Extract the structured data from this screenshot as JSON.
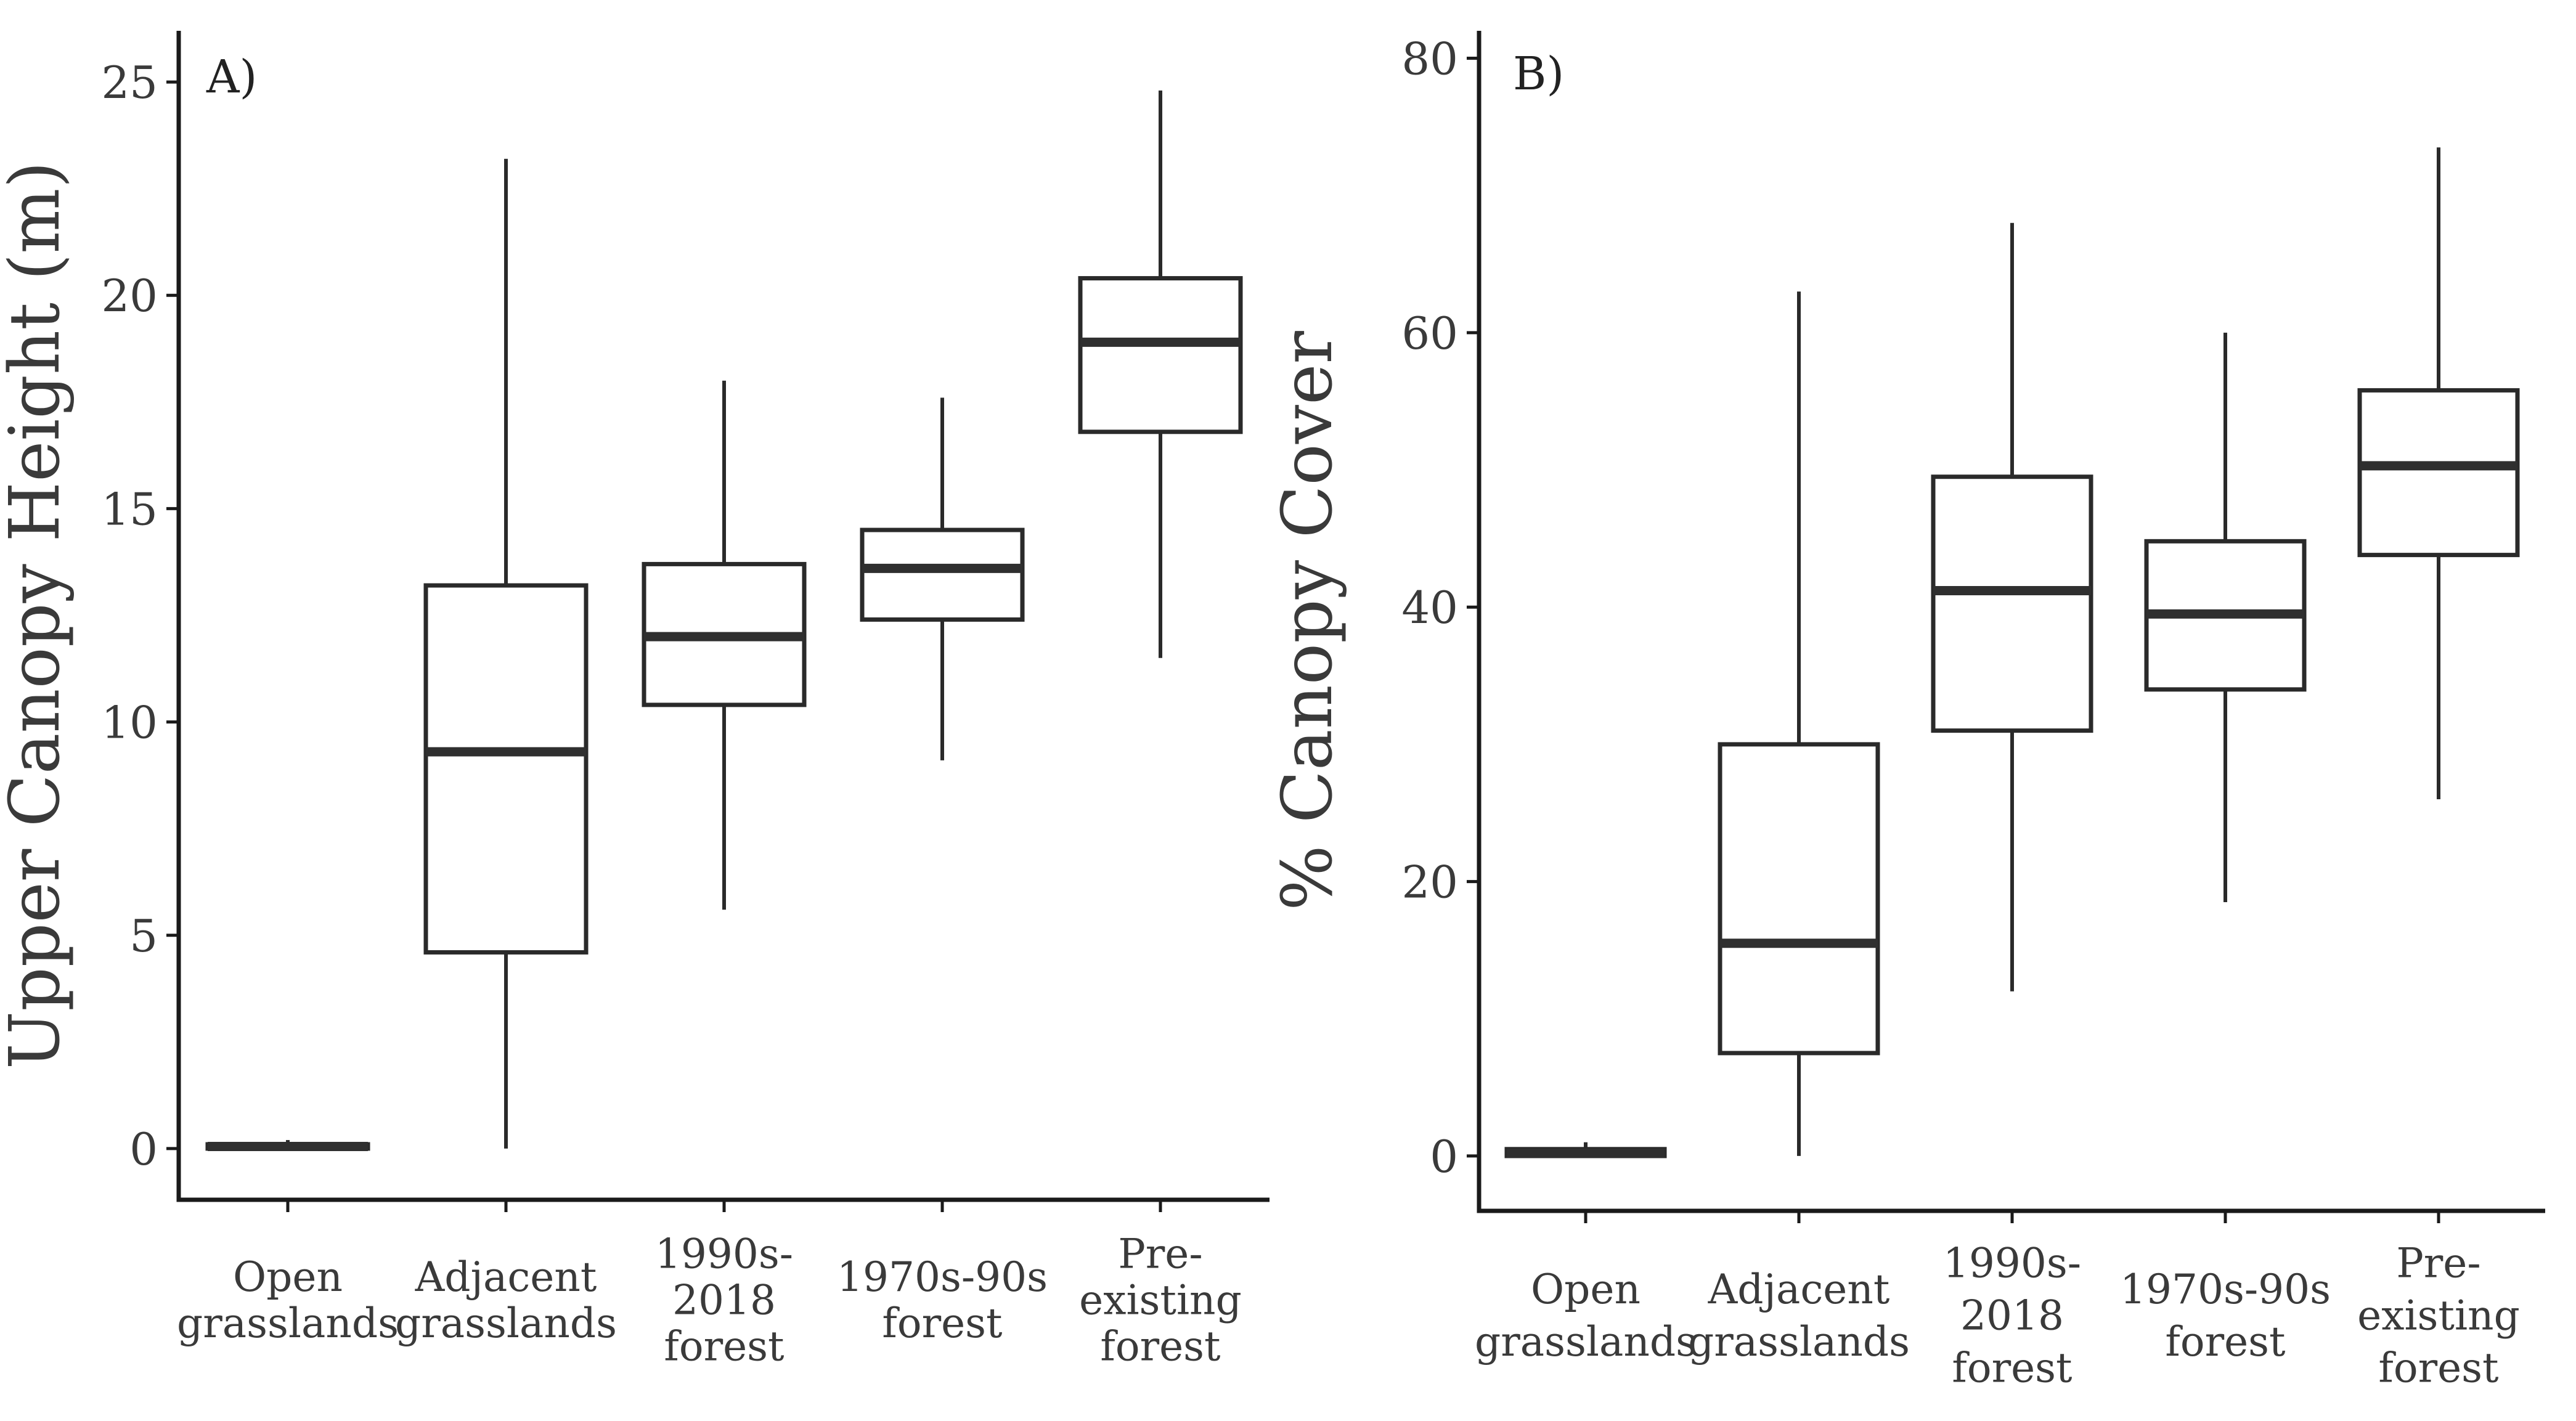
{
  "chart_data": [
    {
      "type": "boxplot",
      "panel_label": "A)",
      "xlabel": "",
      "ylabel": "Upper Canopy Height (m)",
      "ylim": [
        -1.2,
        26.2
      ],
      "yticks": [
        "0",
        "5",
        "10",
        "15",
        "20",
        "25"
      ],
      "categories": [
        [
          "Open",
          "grasslands"
        ],
        [
          "Adjacent",
          "grasslands"
        ],
        [
          "1990s-",
          "2018",
          "forest"
        ],
        [
          "1970s-90s",
          "forest"
        ],
        [
          "Pre-",
          "existing",
          "forest"
        ]
      ],
      "boxes": [
        {
          "min": 0.0,
          "q1": 0.0,
          "median": 0.05,
          "q3": 0.1,
          "max": 0.2
        },
        {
          "min": 0.0,
          "q1": 4.6,
          "median": 9.3,
          "q3": 13.2,
          "max": 23.2
        },
        {
          "min": 5.6,
          "q1": 10.4,
          "median": 12.0,
          "q3": 13.7,
          "max": 18.0
        },
        {
          "min": 9.1,
          "q1": 12.4,
          "median": 13.6,
          "q3": 14.5,
          "max": 17.6
        },
        {
          "min": 11.5,
          "q1": 16.8,
          "median": 18.9,
          "q3": 20.4,
          "max": 24.8
        }
      ]
    },
    {
      "type": "boxplot",
      "panel_label": "B)",
      "xlabel": "",
      "ylabel": "% Canopy Cover",
      "ylim": [
        -4,
        82
      ],
      "yticks": [
        "0",
        "20",
        "40",
        "60",
        "80"
      ],
      "categories": [
        [
          "Open",
          "grasslands"
        ],
        [
          "Adjacent",
          "grasslands"
        ],
        [
          "1990s-",
          "2018",
          "forest"
        ],
        [
          "1970s-90s",
          "forest"
        ],
        [
          "Pre-",
          "existing",
          "forest"
        ]
      ],
      "boxes": [
        {
          "min": 0.0,
          "q1": 0.0,
          "median": 0.2,
          "q3": 0.5,
          "max": 1.0
        },
        {
          "min": 0.0,
          "q1": 7.5,
          "median": 15.5,
          "q3": 30.0,
          "max": 63.0
        },
        {
          "min": 12.0,
          "q1": 31.0,
          "median": 41.2,
          "q3": 49.5,
          "max": 68.0
        },
        {
          "min": 18.5,
          "q1": 34.0,
          "median": 39.5,
          "q3": 44.8,
          "max": 60.0
        },
        {
          "min": 26.0,
          "q1": 43.8,
          "median": 50.3,
          "q3": 55.8,
          "max": 73.5
        }
      ]
    }
  ]
}
